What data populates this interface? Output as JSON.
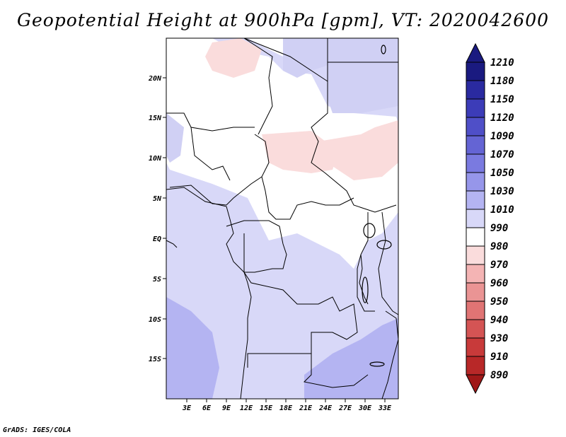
{
  "title": "Geopotential Height at 900hPa [gpm], VT: 2020042600",
  "footer": "GrADS: IGES/COLA",
  "map": {
    "region": "Central Africa",
    "lon_labels": [
      "3E",
      "6E",
      "9E",
      "12E",
      "15E",
      "18E",
      "21E",
      "24E",
      "27E",
      "30E",
      "33E"
    ],
    "lat_labels": [
      "20N",
      "15N",
      "10N",
      "5N",
      "EQ",
      "5S",
      "10S",
      "15S"
    ],
    "background_fill": "#d8d8f8"
  },
  "colorbar": {
    "labels": [
      "1210",
      "1180",
      "1150",
      "1120",
      "1090",
      "1070",
      "1050",
      "1030",
      "1010",
      "990",
      "980",
      "970",
      "960",
      "950",
      "940",
      "930",
      "910",
      "890"
    ],
    "colors": [
      "#1a1a80",
      "#2a2aa0",
      "#3c3cb8",
      "#4f4fc8",
      "#6464d4",
      "#7a7ae0",
      "#9696ea",
      "#b4b4f2",
      "#d8d8f8",
      "#ffffff",
      "#fadcdc",
      "#f4b4b4",
      "#ea9494",
      "#e07474",
      "#d45454",
      "#c83a3a",
      "#b82828",
      "#a01818"
    ]
  }
}
